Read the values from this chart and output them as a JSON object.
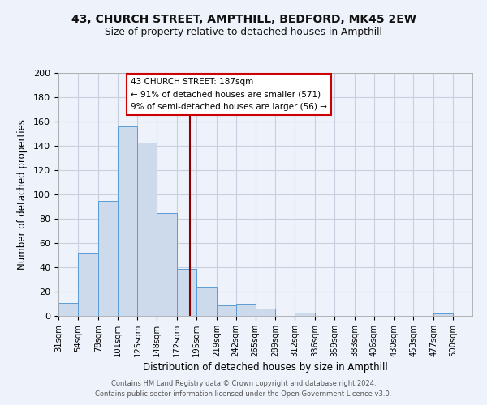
{
  "title_line1": "43, CHURCH STREET, AMPTHILL, BEDFORD, MK45 2EW",
  "title_line2": "Size of property relative to detached houses in Ampthill",
  "xlabel": "Distribution of detached houses by size in Ampthill",
  "ylabel": "Number of detached properties",
  "footer_line1": "Contains HM Land Registry data © Crown copyright and database right 2024.",
  "footer_line2": "Contains public sector information licensed under the Open Government Licence v3.0.",
  "bin_labels": [
    "31sqm",
    "54sqm",
    "78sqm",
    "101sqm",
    "125sqm",
    "148sqm",
    "172sqm",
    "195sqm",
    "219sqm",
    "242sqm",
    "265sqm",
    "289sqm",
    "312sqm",
    "336sqm",
    "359sqm",
    "383sqm",
    "406sqm",
    "430sqm",
    "453sqm",
    "477sqm",
    "500sqm"
  ],
  "bin_values": [
    11,
    52,
    95,
    156,
    143,
    85,
    39,
    24,
    9,
    10,
    6,
    0,
    3,
    0,
    0,
    0,
    0,
    0,
    0,
    2,
    0
  ],
  "bar_color": "#cddaeb",
  "bar_edge_color": "#5b9bd5",
  "grid_color": "#c8d0df",
  "background_color": "#eef2fa",
  "annotation_line1": "43 CHURCH STREET: 187sqm",
  "annotation_line2": "← 91% of detached houses are smaller (571)",
  "annotation_line3": "9% of semi-detached houses are larger (56) →",
  "vline_x": 187,
  "vline_color": "#8b0000",
  "ylim": [
    0,
    200
  ],
  "yticks": [
    0,
    20,
    40,
    60,
    80,
    100,
    120,
    140,
    160,
    180,
    200
  ],
  "annotation_box_facecolor": "#ffffff",
  "annotation_box_edgecolor": "#cc0000",
  "bin_edges": [
    31,
    54,
    78,
    101,
    125,
    148,
    172,
    195,
    219,
    242,
    265,
    289,
    312,
    336,
    359,
    383,
    406,
    430,
    453,
    477,
    500
  ]
}
